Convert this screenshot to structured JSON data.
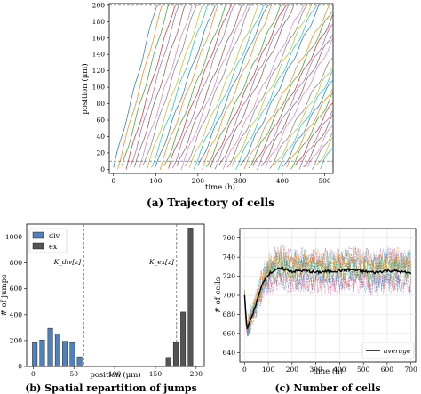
{
  "captions": {
    "a": "(a) Trajectory of cells",
    "b": "(b) Spatial repartition of jumps",
    "c": "(c) Number of cells"
  },
  "colors": {
    "div": "#4f81bd",
    "ex": "#555555",
    "average": "#000000",
    "palette": [
      "#1f77b4",
      "#ff7f0e",
      "#2ca02c",
      "#d62728",
      "#9467bd",
      "#8c564b",
      "#e377c2",
      "#7f7f7f",
      "#bcbd22",
      "#17becf"
    ]
  },
  "chart_data": [
    {
      "id": "a",
      "type": "line",
      "title": "",
      "xlabel": "time (h)",
      "ylabel": "position (μm)",
      "xlim": [
        -10,
        520
      ],
      "ylim": [
        -5,
        202
      ],
      "xticks": [
        0,
        100,
        200,
        300,
        400,
        500
      ],
      "yticks": [
        0,
        20,
        40,
        60,
        80,
        100,
        120,
        140,
        160,
        180,
        200
      ],
      "hlines": [
        200,
        10
      ],
      "grid": false,
      "description_series": "many cell trajectories; each starts near bottom and rises over time",
      "series": [
        {
          "start": 0,
          "slope": 2.6
        },
        {
          "start": 10,
          "slope": 2.5
        },
        {
          "start": 20,
          "slope": 2.4
        },
        {
          "start": 30,
          "slope": 2.3
        },
        {
          "start": 40,
          "slope": 2.3
        },
        {
          "start": 50,
          "slope": 2.2
        },
        {
          "start": 60,
          "slope": 2.1
        },
        {
          "start": 70,
          "slope": 2.1
        },
        {
          "start": 80,
          "slope": 2.0
        },
        {
          "start": 90,
          "slope": 2.0
        },
        {
          "start": 100,
          "slope": 1.9
        },
        {
          "start": 110,
          "slope": 1.9
        },
        {
          "start": 120,
          "slope": 1.8
        },
        {
          "start": 130,
          "slope": 1.8
        },
        {
          "start": 140,
          "slope": 1.8
        },
        {
          "start": 150,
          "slope": 1.7
        },
        {
          "start": 160,
          "slope": 1.7
        },
        {
          "start": 170,
          "slope": 1.7
        },
        {
          "start": 180,
          "slope": 1.6
        },
        {
          "start": 190,
          "slope": 1.6
        },
        {
          "start": 200,
          "slope": 1.6
        },
        {
          "start": 210,
          "slope": 1.6
        },
        {
          "start": 220,
          "slope": 1.5
        },
        {
          "start": 230,
          "slope": 1.5
        },
        {
          "start": 240,
          "slope": 1.5
        },
        {
          "start": 250,
          "slope": 1.5
        },
        {
          "start": 260,
          "slope": 1.4
        },
        {
          "start": 270,
          "slope": 1.4
        },
        {
          "start": 280,
          "slope": 1.4
        },
        {
          "start": 290,
          "slope": 1.4
        },
        {
          "start": 300,
          "slope": 1.4
        },
        {
          "start": 310,
          "slope": 1.3
        },
        {
          "start": 320,
          "slope": 1.3
        },
        {
          "start": 330,
          "slope": 1.3
        },
        {
          "start": 340,
          "slope": 1.3
        },
        {
          "start": 350,
          "slope": 1.3
        },
        {
          "start": 360,
          "slope": 1.3
        },
        {
          "start": 370,
          "slope": 1.2
        },
        {
          "start": 380,
          "slope": 1.2
        },
        {
          "start": 390,
          "slope": 1.2
        },
        {
          "start": 400,
          "slope": 1.2
        },
        {
          "start": 410,
          "slope": 1.2
        },
        {
          "start": 420,
          "slope": 1.2
        },
        {
          "start": 430,
          "slope": 1.2
        },
        {
          "start": 440,
          "slope": 1.2
        },
        {
          "start": 450,
          "slope": 1.2
        },
        {
          "start": 460,
          "slope": 1.2
        },
        {
          "start": 470,
          "slope": 1.2
        },
        {
          "start": 480,
          "slope": 1.2
        },
        {
          "start": 490,
          "slope": 1.2
        }
      ]
    },
    {
      "id": "b",
      "type": "bar",
      "title": "",
      "xlabel": "position (μm)",
      "ylabel": "# of jumps",
      "xlim": [
        -8,
        210
      ],
      "ylim": [
        0,
        1100
      ],
      "xticks": [
        0,
        50,
        100,
        150,
        200
      ],
      "yticks": [
        0,
        200,
        400,
        600,
        800,
        1000
      ],
      "legend": {
        "position": "top-left",
        "entries": [
          "div",
          "ex"
        ]
      },
      "vlines": [
        {
          "x": 62,
          "label": "K_div[z]"
        },
        {
          "x": 176,
          "label": "K_ex[z]"
        }
      ],
      "series": [
        {
          "name": "div",
          "x": [
            2,
            11,
            21,
            30,
            39,
            48,
            57
          ],
          "values": [
            185,
            205,
            295,
            250,
            195,
            185,
            75
          ],
          "width": 6
        },
        {
          "name": "ex",
          "x": [
            166,
            175,
            184,
            193
          ],
          "values": [
            70,
            185,
            420,
            1070
          ],
          "width": 6
        }
      ]
    },
    {
      "id": "c",
      "type": "line",
      "title": "",
      "xlabel": "time (h)",
      "ylabel": "# of cells",
      "xlim": [
        -20,
        720
      ],
      "ylim": [
        630,
        770
      ],
      "xticks": [
        0,
        100,
        200,
        300,
        400,
        500,
        600,
        700
      ],
      "yticks": [
        640,
        660,
        680,
        700,
        720,
        740,
        760
      ],
      "grid": true,
      "legend": {
        "position": "bottom-right",
        "entries": [
          "average"
        ]
      },
      "average": {
        "name": "average",
        "x": [
          0,
          10,
          20,
          40,
          60,
          80,
          100,
          130,
          160,
          200,
          250,
          300,
          350,
          400,
          450,
          500,
          550,
          600,
          650,
          700
        ],
        "y": [
          700,
          665,
          670,
          685,
          700,
          715,
          722,
          727,
          728,
          725,
          726,
          724,
          725,
          726,
          727,
          725,
          724,
          726,
          725,
          723
        ]
      },
      "noisy_series_count": 12
    }
  ]
}
